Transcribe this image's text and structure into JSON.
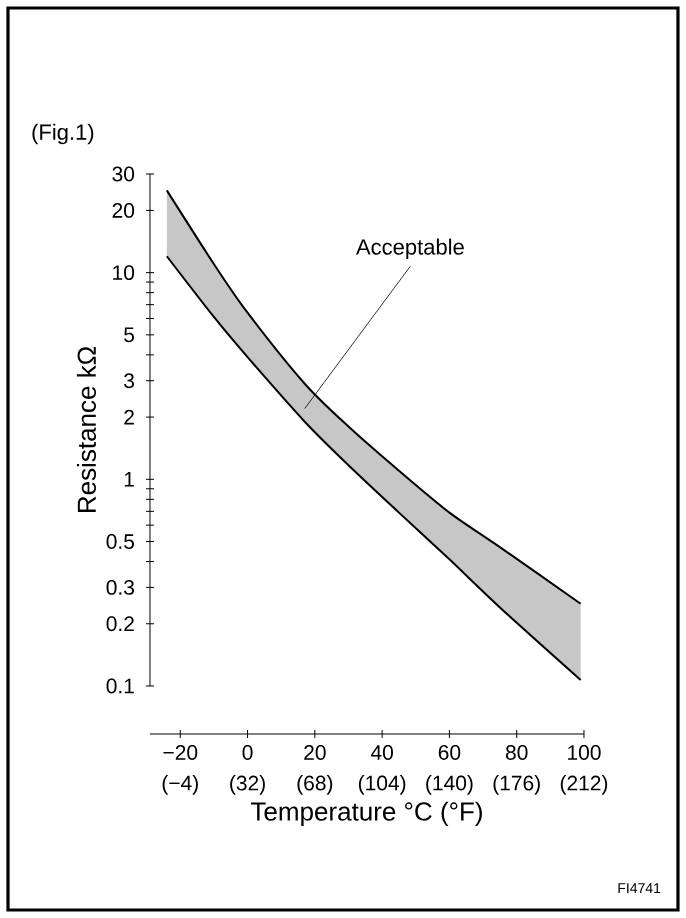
{
  "chart_data": {
    "type": "line",
    "title": "(Fig.1)",
    "xlabel": "Temperature °C (°F)",
    "ylabel": "Resistance kΩ",
    "x": [
      -24,
      -10,
      0,
      17,
      30,
      45,
      60,
      75,
      99
    ],
    "series": [
      {
        "color": "#000000",
        "values": [
          25,
          11,
          6.4,
          2.9,
          1.8,
          1.1,
          0.69,
          0.47,
          0.25
        ],
        "lower": [
          12,
          6.1,
          3.9,
          1.9,
          1.17,
          0.69,
          0.41,
          0.24,
          0.107
        ],
        "upper": [
          25,
          11,
          6.4,
          2.9,
          1.8,
          1.1,
          0.69,
          0.47,
          0.25
        ]
      },
      {
        "color": "#000000",
        "values": [
          12,
          6.1,
          3.9,
          1.9,
          1.17,
          0.69,
          0.41,
          0.24,
          0.107
        ]
      }
    ],
    "log": "y",
    "xlim": [
      -29,
      100
    ],
    "ylim": [
      0.1,
      30
    ],
    "xticks": [
      {
        "value": -20,
        "label": "−20"
      },
      0,
      20,
      40,
      60,
      80,
      100
    ],
    "x2lim": [
      -20.2,
      212
    ],
    "x2ticks": [
      {
        "value": -4,
        "label": "(−4)"
      },
      {
        "value": 32,
        "label": "(32)"
      },
      {
        "value": 68,
        "label": "(68)"
      },
      {
        "value": 104,
        "label": "(104)"
      },
      {
        "value": 140,
        "label": "(140)"
      },
      {
        "value": 176,
        "label": "(176)"
      },
      {
        "value": 212,
        "label": "(212)"
      }
    ],
    "yticks": [
      0.1,
      0.2,
      0.3,
      {
        "value": 0.4,
        "label": null
      },
      0.5,
      {
        "value": 0.6,
        "label": null
      },
      {
        "value": 0.7,
        "label": null
      },
      {
        "value": 0.8,
        "label": null
      },
      {
        "value": 0.9,
        "label": null
      },
      1,
      2,
      3,
      {
        "value": 4,
        "label": null
      },
      5,
      {
        "value": 6,
        "label": null
      },
      {
        "value": 7,
        "label": null
      },
      {
        "value": 8,
        "label": null
      },
      {
        "value": 9,
        "label": null
      },
      10,
      20,
      30
    ],
    "annotations": [
      {
        "text": "Acceptable",
        "x": 17,
        "y": 2.2
      },
      "FI4741"
    ],
    "marker": "none",
    "line_style": "solid"
  }
}
